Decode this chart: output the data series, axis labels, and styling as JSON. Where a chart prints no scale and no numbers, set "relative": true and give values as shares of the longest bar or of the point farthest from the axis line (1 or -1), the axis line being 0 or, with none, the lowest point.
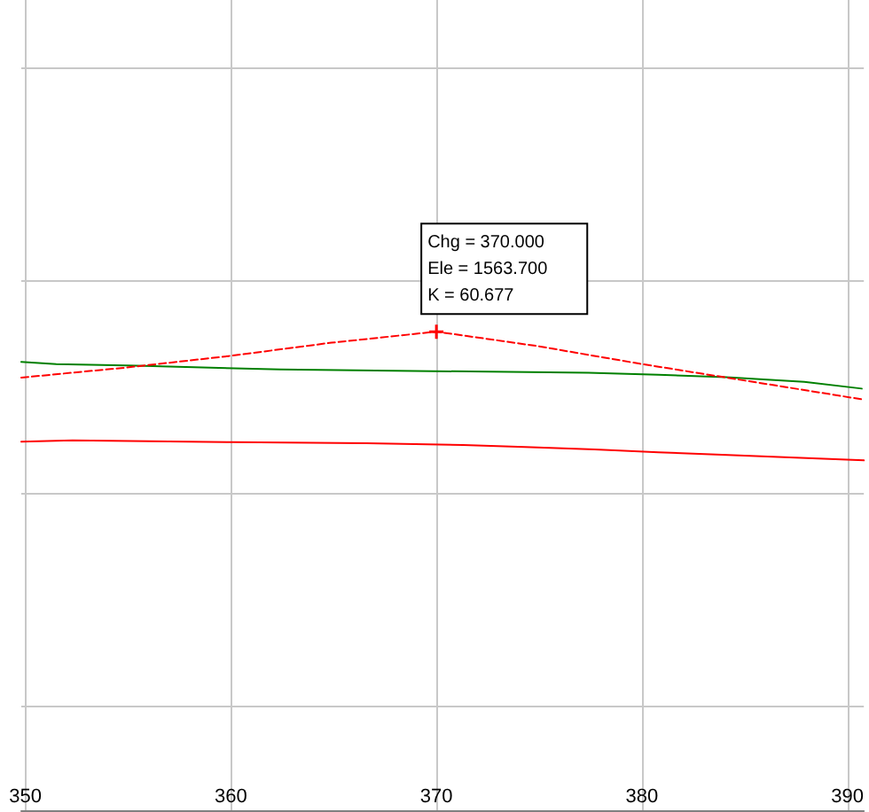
{
  "chart_data": {
    "type": "line",
    "relative": true,
    "grid": true,
    "xlim": [
      349.8,
      390.8
    ],
    "xticks": [
      350,
      360,
      370,
      380,
      390
    ],
    "series": [
      {
        "color": "#008000",
        "line_style": "solid",
        "x": [
          349.8,
          351.5,
          355.4,
          362.4,
          377.4,
          380.8,
          384.1,
          387.9,
          390.7
        ],
        "values": [
          0.937,
          0.932,
          0.929,
          0.921,
          0.914,
          0.91,
          0.905,
          0.895,
          0.881
        ]
      },
      {
        "color": "#ff0000",
        "line_style": "solid",
        "x": [
          349.8,
          352.3,
          360.1,
          366.6,
          371.3,
          374.3,
          377.7,
          380.8,
          383.9,
          387.2,
          390.8
        ],
        "values": [
          0.77,
          0.773,
          0.769,
          0.767,
          0.763,
          0.759,
          0.754,
          0.748,
          0.743,
          0.737,
          0.731
        ]
      },
      {
        "color": "#ff0000",
        "line_style": "dashed",
        "x": [
          349.8,
          354.9,
          359.9,
          364.9,
          370,
          374.9,
          379.9,
          384.7,
          390.8
        ],
        "values": [
          0.904,
          0.925,
          0.949,
          0.977,
          1,
          0.97,
          0.933,
          0.9,
          0.858
        ]
      }
    ],
    "annotations": [
      {
        "text": "Chg = 370.000\nEle = 1563.700\nK = 60.677",
        "x": 370,
        "y": 1
      }
    ]
  }
}
